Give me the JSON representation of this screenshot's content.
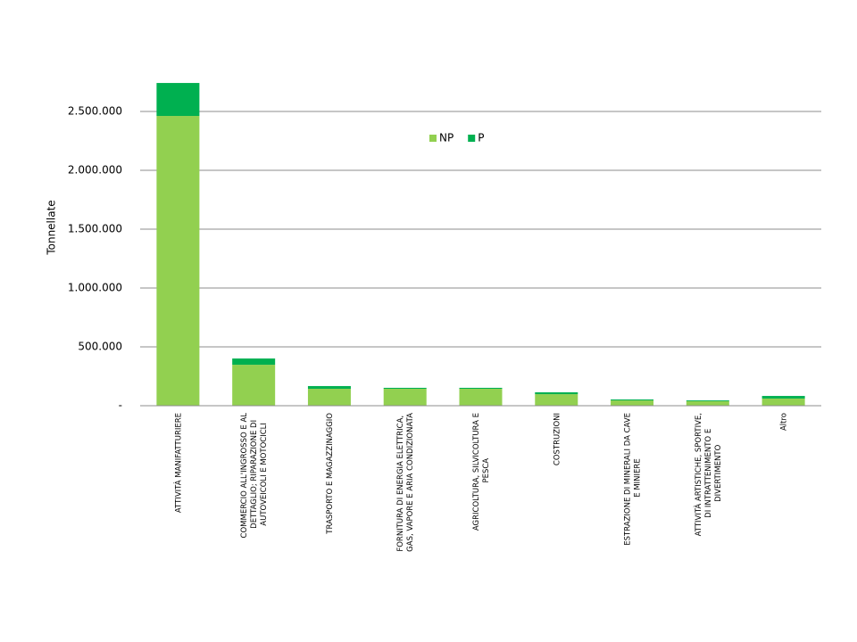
{
  "chart_data": {
    "type": "stacked_bar",
    "y_label": "Tonnellate",
    "categories": [
      "ATTIVITÀ MANIFATTURIERE",
      "COMMERCIO ALL'INGROSSO E AL DETTAGLIO; RIPARAZIONE DI AUTOVEICOLI E MOTOCICLI",
      "TRASPORTO E MAGAZZINAGGIO",
      "FORNITURA DI ENERGIA ELETTRICA, GAS, VAPORE E ARIA CONDIZIONATA",
      "AGRICOLTURA, SILVICOLTURA E PESCA",
      "COSTRUZIONI",
      "ESTRAZIONE DI MINERALI DA CAVE E MINIERE",
      "ATTIVITÀ ARTISTICHE, SPORTIVE, DI INTRATTENIMENTO E DIVERTIMENTO",
      "Altro"
    ],
    "series": [
      {
        "name": "NP",
        "color": "#92d050",
        "values": [
          2462000,
          348000,
          144000,
          144000,
          144000,
          98000,
          45000,
          38000,
          61000
        ]
      },
      {
        "name": "P",
        "color": "#00b050",
        "values": [
          280000,
          53000,
          23000,
          8000,
          8000,
          16000,
          8000,
          7000,
          22000
        ]
      }
    ],
    "ylim": [
      0,
      2750000
    ],
    "yticks": [
      {
        "value": 0,
        "label": "-"
      },
      {
        "value": 500000,
        "label": "500.000"
      },
      {
        "value": 1000000,
        "label": "1.000.000"
      },
      {
        "value": 1500000,
        "label": "1.500.000"
      },
      {
        "value": 2000000,
        "label": "2.000.000"
      },
      {
        "value": 2500000,
        "label": "2.500.000"
      }
    ],
    "grid": true,
    "legend": "top"
  }
}
